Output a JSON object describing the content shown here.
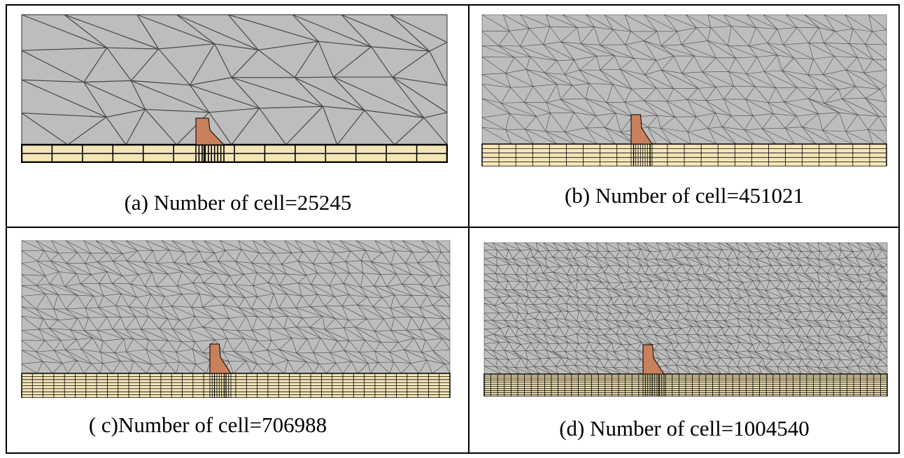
{
  "panels": [
    {
      "caption": "(a) Number of cell=25245"
    },
    {
      "caption": "(b) Number of cell=451021"
    },
    {
      "caption": "( c)Number of cell=706988"
    },
    {
      "caption": "(d) Number of cell=1004540"
    }
  ]
}
